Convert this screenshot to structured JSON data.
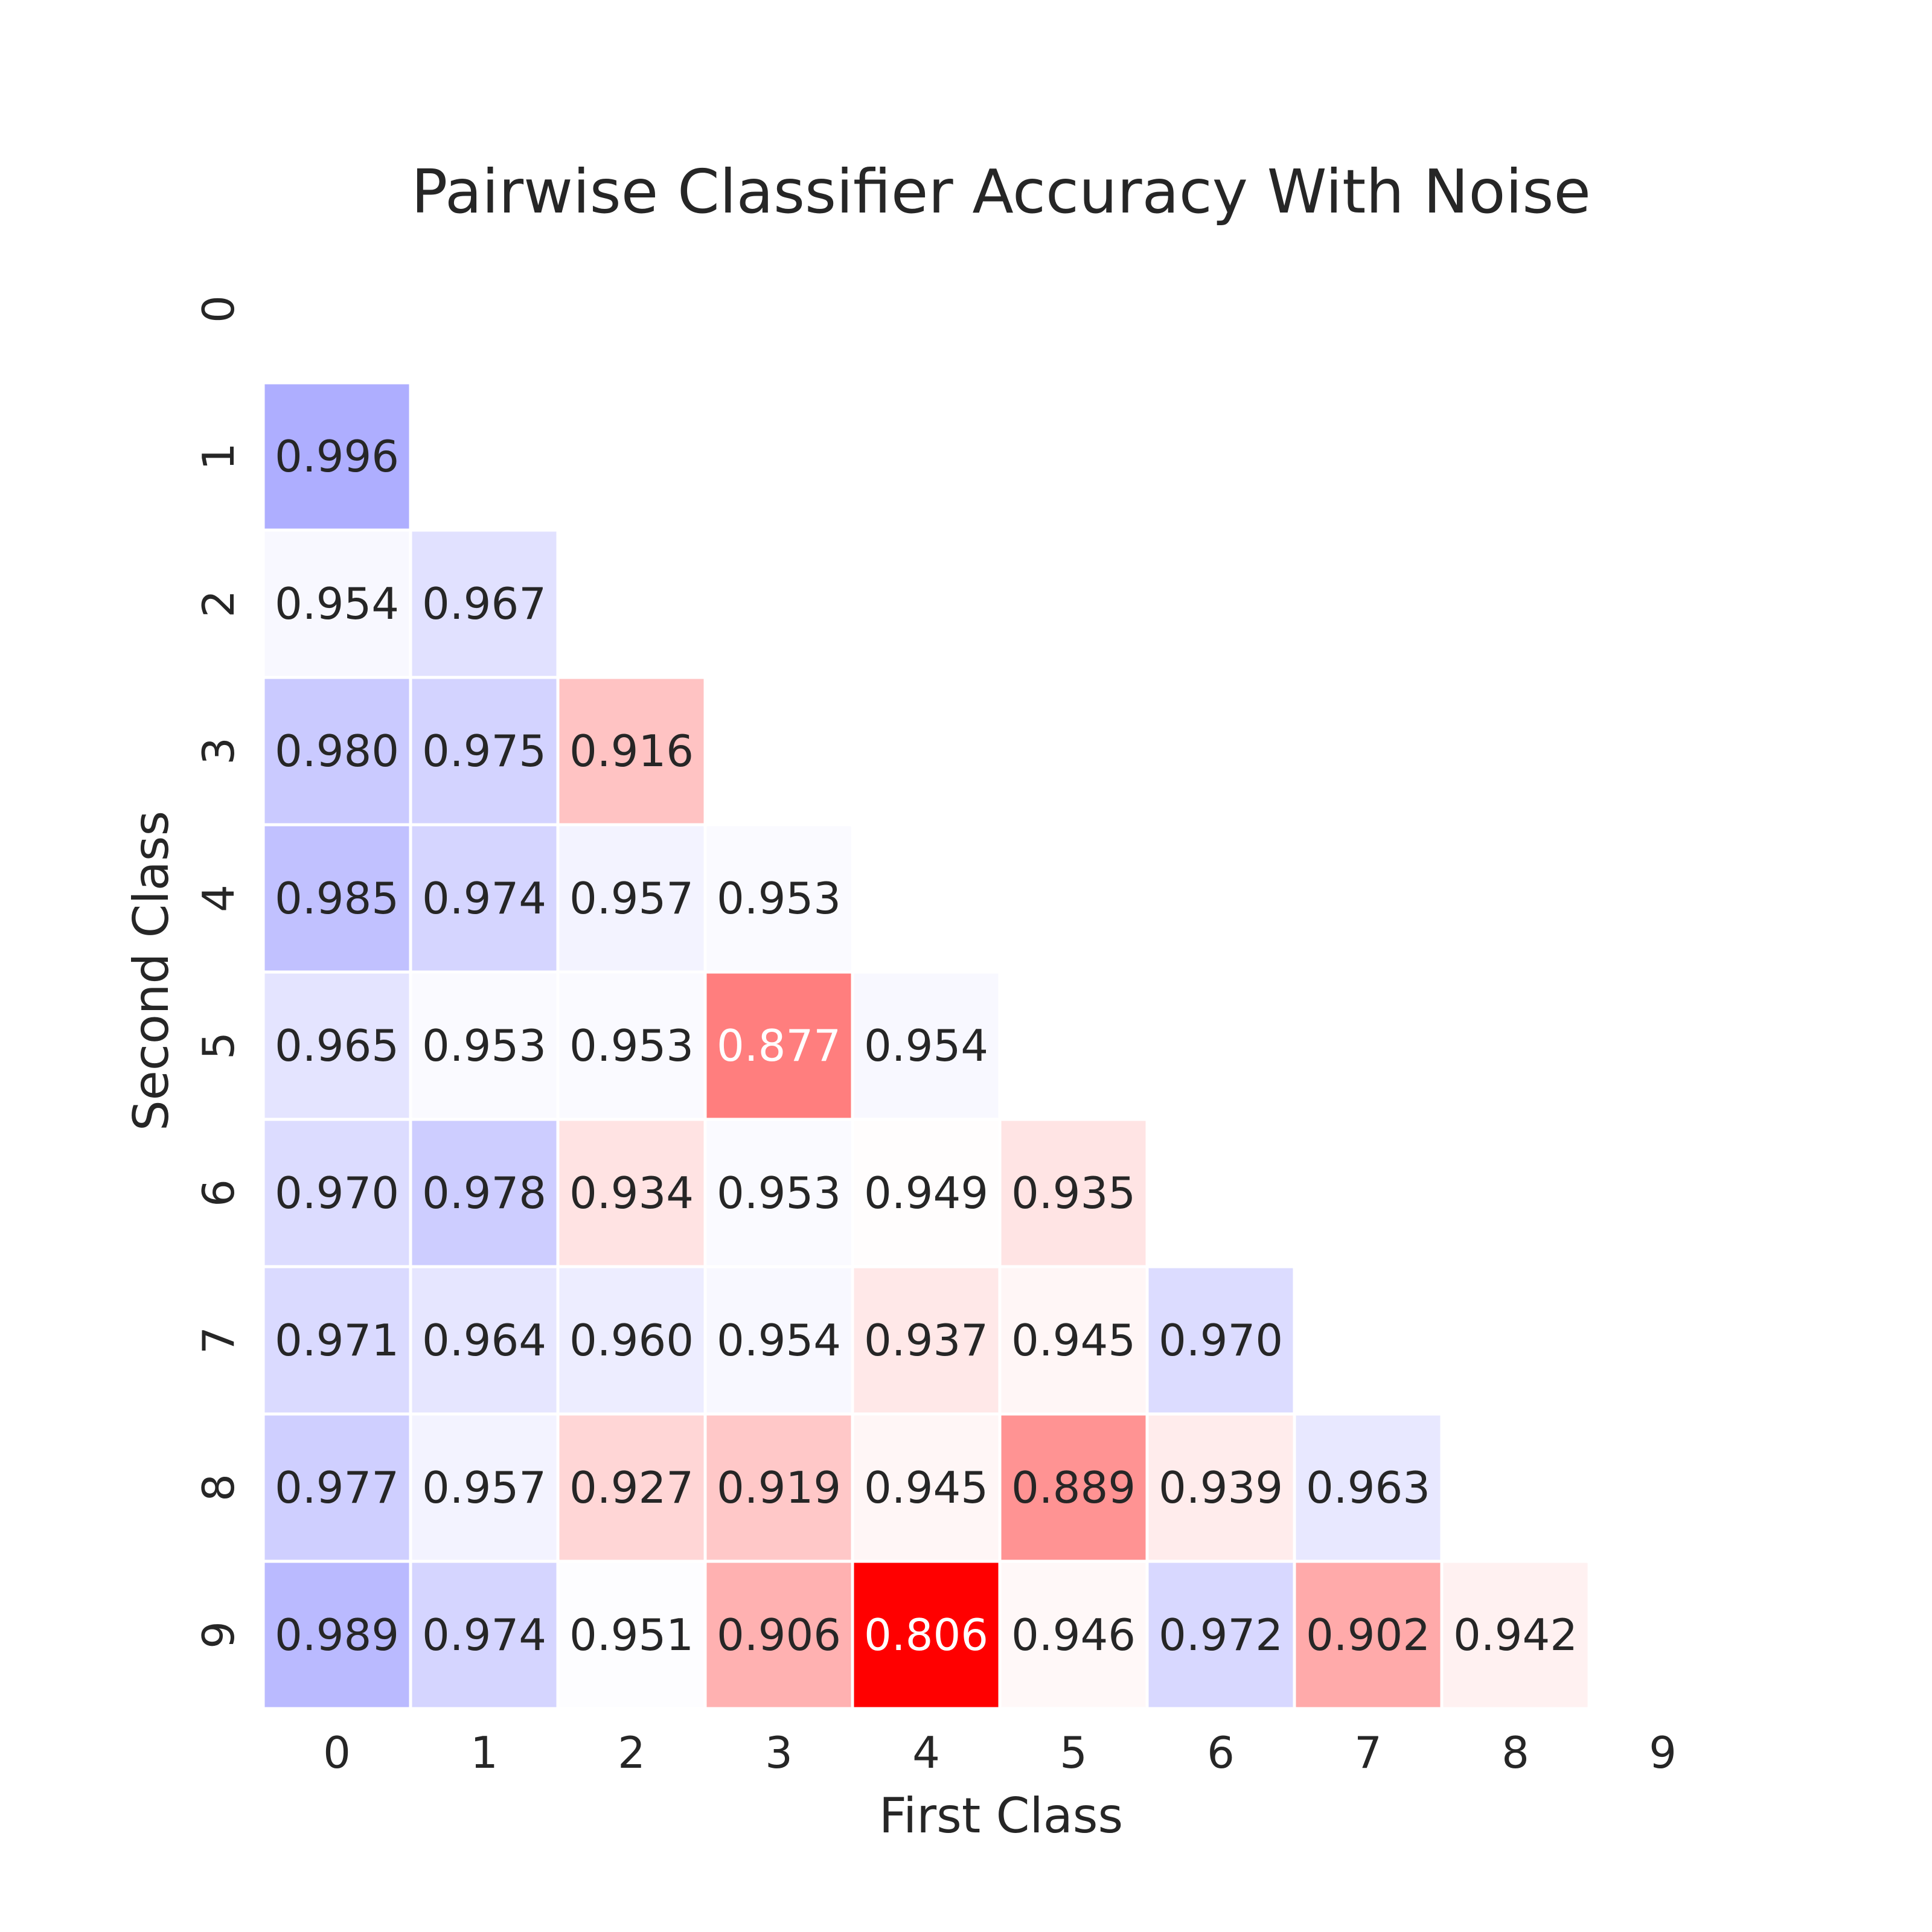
{
  "chart_data": {
    "type": "heatmap",
    "title": "Pairwise Classifier Accuracy With Noise",
    "xlabel": "First Class",
    "ylabel": "Second Class",
    "x_categories": [
      "0",
      "1",
      "2",
      "3",
      "4",
      "5",
      "6",
      "7",
      "8",
      "9"
    ],
    "y_categories": [
      "0",
      "1",
      "2",
      "3",
      "4",
      "5",
      "6",
      "7",
      "8",
      "9"
    ],
    "mask": "upper-triangle-including-diagonal",
    "colormap": {
      "low_color": "#ff0000",
      "mid_color": "#ffffff",
      "high_color": "#0000ff",
      "vmin": 0.806,
      "center": 0.95,
      "vmax": 1.094
    },
    "grid": false,
    "colorbar": false,
    "rows": [
      {
        "label": "0",
        "values": []
      },
      {
        "label": "1",
        "values": [
          0.996
        ]
      },
      {
        "label": "2",
        "values": [
          0.954,
          0.967
        ]
      },
      {
        "label": "3",
        "values": [
          0.98,
          0.975,
          0.916
        ]
      },
      {
        "label": "4",
        "values": [
          0.985,
          0.974,
          0.957,
          0.953
        ]
      },
      {
        "label": "5",
        "values": [
          0.965,
          0.953,
          0.953,
          0.877,
          0.954
        ]
      },
      {
        "label": "6",
        "values": [
          0.97,
          0.978,
          0.934,
          0.953,
          0.949,
          0.935
        ]
      },
      {
        "label": "7",
        "values": [
          0.971,
          0.964,
          0.96,
          0.954,
          0.937,
          0.945,
          0.97
        ]
      },
      {
        "label": "8",
        "values": [
          0.977,
          0.957,
          0.927,
          0.919,
          0.945,
          0.889,
          0.939,
          0.963
        ]
      },
      {
        "label": "9",
        "values": [
          0.989,
          0.974,
          0.951,
          0.906,
          0.806,
          0.946,
          0.972,
          0.902,
          0.942
        ]
      }
    ]
  }
}
